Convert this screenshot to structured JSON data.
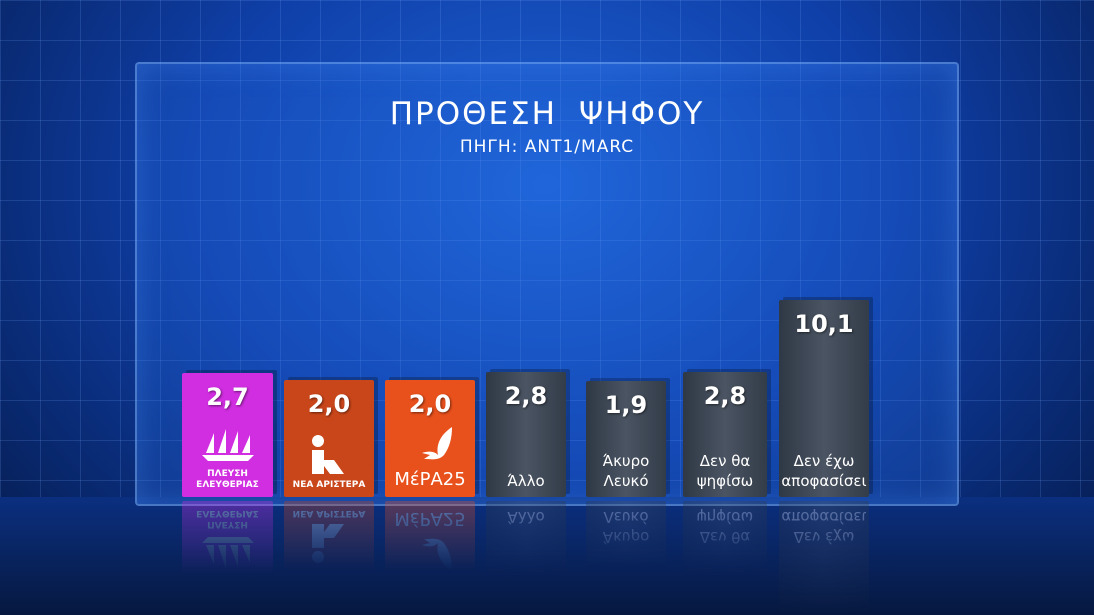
{
  "title": "ΠΡΟΘΕΣΗ ΨΗΦΟΥ",
  "subtitle": "ΠΗΓΗ: ANT1/MARC",
  "chart_data": {
    "type": "bar",
    "title": "ΠΡΟΘΕΣΗ ΨΗΦΟΥ",
    "subtitle": "ΠΗΓΗ: ANT1/MARC",
    "categories": [
      "ΠΛΕΥΣΗ ΕΛΕΥΘΕΡΙΑΣ",
      "ΝΕΑ ΑΡΙΣΤΕΡΑ",
      "ΜέΡΑ25",
      "Άλλο",
      "Άκυρο Λευκό",
      "Δεν θα ψηφίσω",
      "Δεν έχω αποφασίσει"
    ],
    "values": [
      2.7,
      2.0,
      2.0,
      2.8,
      1.9,
      2.8,
      10.1
    ],
    "value_labels": [
      "2,7",
      "2,0",
      "2,0",
      "2,8",
      "1,9",
      "2,8",
      "10,1"
    ],
    "labels": [
      "ΠΛΕΥΣΗ\nΕΛΕΥΘΕΡΙΑΣ",
      "ΝΕΑ ΑΡΙΣΤΕΡΑ",
      "ΜέΡΑ25",
      "Άλλο",
      "Άκυρο\nΛευκό",
      "Δεν  θα\nψηφίσω",
      "Δεν έχω\nαποφασίσει"
    ],
    "colors": [
      "#d02ee0",
      "#c9461a",
      "#e8501c",
      "#3d4654",
      "#3d4654",
      "#3d4654",
      "#3d4654"
    ],
    "icons": [
      "ships-logo",
      "person-logo",
      "swallow-logo",
      null,
      null,
      null,
      null
    ],
    "grid": false,
    "xlabel": "",
    "ylabel": ""
  }
}
